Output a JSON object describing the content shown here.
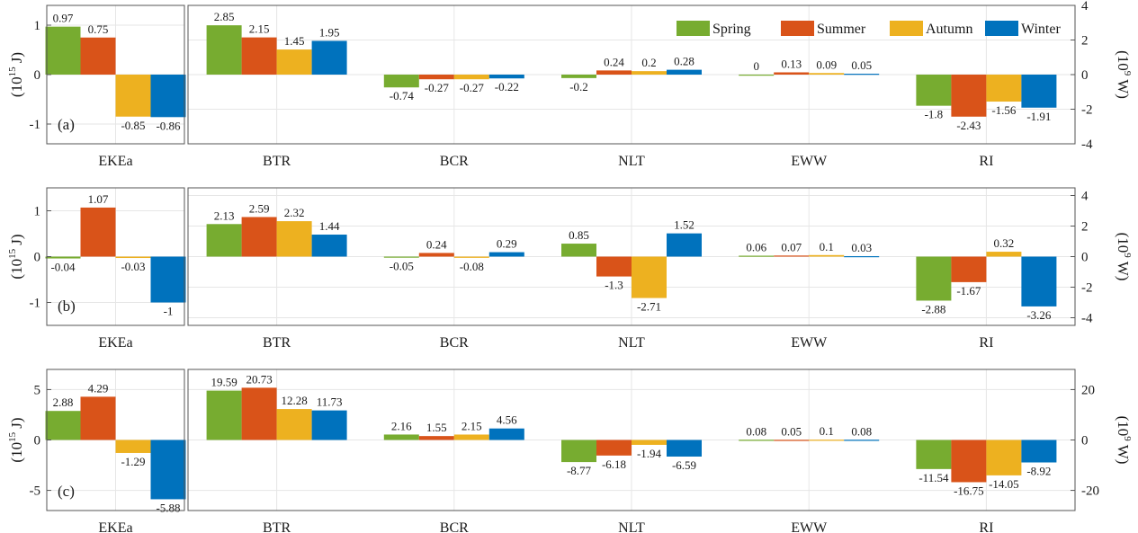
{
  "legend": {
    "entries": [
      "Spring",
      "Summer",
      "Autumn",
      "Winter"
    ],
    "placement": "top-right of panel (a)"
  },
  "colors": {
    "Spring": "#77ac30",
    "Summer": "#d95319",
    "Autumn": "#edb120",
    "Winter": "#0072bd"
  },
  "chart_data": [
    {
      "type": "bar",
      "panel_label": "(a)",
      "left": {
        "categories": [
          "EKEa"
        ],
        "ylabel": "(10^15 J)",
        "ylim": [
          -1.4,
          1.4
        ],
        "yticks": [
          -1,
          0,
          1
        ],
        "series": [
          {
            "name": "Spring",
            "values": [
              0.97
            ]
          },
          {
            "name": "Summer",
            "values": [
              0.75
            ]
          },
          {
            "name": "Autumn",
            "values": [
              -0.85
            ]
          },
          {
            "name": "Winter",
            "values": [
              -0.86
            ]
          }
        ]
      },
      "right": {
        "categories": [
          "BTR",
          "BCR",
          "NLT",
          "EWW",
          "RI"
        ],
        "ylabel": "(10^9 W)",
        "ylim": [
          -4,
          4
        ],
        "yticks": [
          -4,
          -2,
          0,
          2,
          4
        ],
        "series": [
          {
            "name": "Spring",
            "values": [
              2.85,
              -0.74,
              -0.2,
              0,
              -1.8
            ]
          },
          {
            "name": "Summer",
            "values": [
              2.15,
              -0.27,
              0.24,
              0.13,
              -2.43
            ]
          },
          {
            "name": "Autumn",
            "values": [
              1.45,
              -0.27,
              0.2,
              0.09,
              -1.56
            ]
          },
          {
            "name": "Winter",
            "values": [
              1.95,
              -0.22,
              0.28,
              0.05,
              -1.91
            ]
          }
        ]
      }
    },
    {
      "type": "bar",
      "panel_label": "(b)",
      "left": {
        "categories": [
          "EKEa"
        ],
        "ylabel": "(10^15 J)",
        "ylim": [
          -1.5,
          1.5
        ],
        "yticks": [
          -1,
          0,
          1
        ],
        "series": [
          {
            "name": "Spring",
            "values": [
              -0.04
            ]
          },
          {
            "name": "Summer",
            "values": [
              1.07
            ]
          },
          {
            "name": "Autumn",
            "values": [
              -0.03
            ]
          },
          {
            "name": "Winter",
            "values": [
              -1
            ]
          }
        ]
      },
      "right": {
        "categories": [
          "BTR",
          "BCR",
          "NLT",
          "EWW",
          "RI"
        ],
        "ylabel": "(10^9 W)",
        "ylim": [
          -4.5,
          4.5
        ],
        "yticks": [
          -4,
          -2,
          0,
          2,
          4
        ],
        "series": [
          {
            "name": "Spring",
            "values": [
              2.13,
              -0.05,
              0.85,
              0.06,
              -2.88
            ]
          },
          {
            "name": "Summer",
            "values": [
              2.59,
              0.24,
              -1.3,
              0.07,
              -1.67
            ]
          },
          {
            "name": "Autumn",
            "values": [
              2.32,
              -0.08,
              -2.71,
              0.1,
              0.32
            ]
          },
          {
            "name": "Winter",
            "values": [
              1.44,
              0.29,
              1.52,
              0.03,
              -3.26
            ]
          }
        ]
      }
    },
    {
      "type": "bar",
      "panel_label": "(c)",
      "left": {
        "categories": [
          "EKEa"
        ],
        "ylabel": "(10^15 J)",
        "ylim": [
          -7,
          7
        ],
        "yticks": [
          -5,
          0,
          5
        ],
        "series": [
          {
            "name": "Spring",
            "values": [
              2.88
            ]
          },
          {
            "name": "Summer",
            "values": [
              4.29
            ]
          },
          {
            "name": "Autumn",
            "values": [
              -1.29
            ]
          },
          {
            "name": "Winter",
            "values": [
              -5.88
            ]
          }
        ]
      },
      "right": {
        "categories": [
          "BTR",
          "BCR",
          "NLT",
          "EWW",
          "RI"
        ],
        "ylabel": "(10^9 W)",
        "ylim": [
          -28,
          28
        ],
        "yticks": [
          -20,
          0,
          20
        ],
        "series": [
          {
            "name": "Spring",
            "values": [
              19.59,
              2.16,
              -8.77,
              0.08,
              -11.54
            ]
          },
          {
            "name": "Summer",
            "values": [
              20.73,
              1.55,
              -6.18,
              0.05,
              -16.75
            ]
          },
          {
            "name": "Autumn",
            "values": [
              12.28,
              2.15,
              -1.94,
              0.1,
              -14.05
            ]
          },
          {
            "name": "Winter",
            "values": [
              11.73,
              4.56,
              -6.59,
              0.08,
              -8.92
            ]
          }
        ]
      }
    }
  ]
}
